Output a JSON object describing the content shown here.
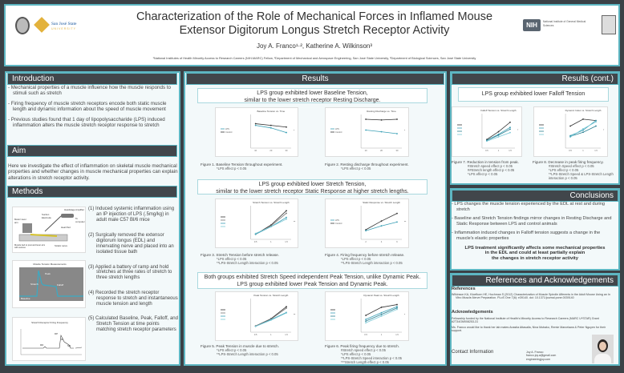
{
  "header": {
    "title_line1": "Characterization of the Role of Mechanical Forces in Inflamed Mouse",
    "title_line2": "Extensor Digitorum Longus Stretch Receptor Activity",
    "authors": "Joy A. Franco¹·², Katherine A. Wilkinson³",
    "affiliations": "¹National Institutes of Health Minority Access to Research Careers (NIH-MARC) Fellow, ²Department of Mechanical and Aerospace Engineering, San José State University, ³Department of Biological Sciences, San José State University",
    "logo_left_text": "San José State",
    "logo_left_sub": "UNIVERSITY",
    "logo_nih": "NIH",
    "logo_nih_text": "National Institute of General Medical Sciences"
  },
  "intro": {
    "title": "Introduction",
    "bullets": [
      "- Mechanical properties of a muscle influence how the muscle responds to stimuli such as stretch",
      "- Firing frequency of muscle stretch receptors encode both static muscle length and dynamic information about the speed of muscle movement",
      "- Previous studies found that 1 day of lipopolysaccharide (LPS) induced inflammation alters the muscle stretch receptor response to stretch"
    ]
  },
  "aim": {
    "title": "Aim",
    "text": "Here we investigate the effect of inflammation on skeletal muscle mechanical properties and whether changes in muscle mechanical properties can explain alterations in stretch receptor activity."
  },
  "methods": {
    "title": "Methods",
    "steps": [
      "(1) Induced systemic inflammation using an IP injection of LPS (.5mg/kg) in adult male C57 Bl/6 mice",
      "(2) Surgically removed the extensor digitorum longus (EDL) and innervating nerve and placed into an isolated tissue bath",
      "(3) Applied a battery of ramp and hold stretches at three rates of stretch to three stretch lengths",
      "(4) Recorded the stretch receptor response to stretch and instantaneous muscle tension and length",
      "(5) Calculated Baseline, Peak, Falloff, and Stretch Tension at time points matching stretch receptor parameters"
    ],
    "img1_labels": [
      "Headstage Amplifier",
      "To computer",
      "Suction Electrode",
      "Motor/ lever arm",
      "Heat Pad",
      "Muscle tied to post and lever arm with sutures",
      "Sciatic nerve"
    ],
    "img2_title": "Muscle Tension Measurements",
    "img2_labels": [
      "Peak",
      "Falloff",
      "Stretch",
      "Baseline"
    ],
    "img3_title": "Stretch Receptor Firing Frequency",
    "img3_labels": [
      "RD",
      "DP",
      "DI",
      "SR"
    ]
  },
  "results": {
    "title": "Results",
    "box1": [
      "LPS group exhibited lower Baseline Tension,",
      "similar to the lower stretch receptor Resting Discharge."
    ],
    "box2": [
      "LPS group exhibited lower Stretch Tension,",
      "similar to the lower stretch receptor Static Response at higher stretch lengths."
    ],
    "box3": [
      "Both groups exhibited Stretch Speed independent Peak Tension, unlike Dynamic Peak.",
      "LPS group exhibited lower Peak Tension and Dynamic Peak."
    ]
  },
  "results_cont": {
    "title": "Results (cont.)",
    "box1": "LPS group exhibited lower Falloff Tension"
  },
  "figures": [
    {
      "title": "Baseline Tension vs. Time",
      "caption": "Figure 1.  Baseline Tension throughout experiment.",
      "notes": [
        "*LPS effect p < 0.05"
      ],
      "ylim": [
        0,
        8
      ],
      "legend": [
        "LPS",
        "Control"
      ],
      "series": [
        {
          "name": "Control",
          "color": "#333333",
          "values": [
            5.8,
            5.4,
            5.0
          ]
        },
        {
          "name": "LPS",
          "color": "#3a9fb5",
          "values": [
            5.4,
            4.8,
            3.7
          ]
        }
      ],
      "xticks": [
        "10",
        "20",
        "30"
      ],
      "sig": "*"
    },
    {
      "title": "Resting Discharge vs. Time",
      "caption": "Figure 2.  Resting discharge throughout experiment.",
      "notes": [
        "*LPS effect p < 0.05"
      ],
      "ylim": [
        0,
        14
      ],
      "legend": [
        "LPS",
        "Control"
      ],
      "series": [
        {
          "name": "Control",
          "color": "#333333",
          "values": [
            12,
            11.7,
            12
          ]
        },
        {
          "name": "LPS",
          "color": "#3a9fb5",
          "values": [
            7.5,
            6.8,
            6
          ]
        }
      ],
      "xticks": [
        "10",
        "20",
        "30"
      ],
      "sig": "*"
    },
    {
      "title": "Stretch Tension vs. Stretch Length",
      "caption": "Figure 3.  Stretch Tension before stretch release.",
      "notes": [
        "*LPS effect p < 0.05",
        "**LPS-Stretch Length interaction p < 0.05"
      ],
      "ylim": [
        0,
        40
      ],
      "series": [
        {
          "color": "#333333",
          "values": [
            6,
            17,
            34
          ]
        },
        {
          "color": "#777777",
          "values": [
            6,
            16,
            31
          ]
        },
        {
          "color": "#3a9fb5",
          "values": [
            6,
            15,
            26
          ]
        },
        {
          "color": "#7cc8d6",
          "values": [
            7,
            15,
            24
          ]
        }
      ],
      "xticks": [
        "0.5",
        "1",
        "1.5"
      ],
      "sig": "**"
    },
    {
      "title": "Static Response vs. Stretch Length",
      "caption": "Figure 4.  Firing frequency before stretch release.",
      "notes": [
        "*LPS effect p < 0.05",
        "**LPS-Stretch Length interaction p < 0.05"
      ],
      "ylim": [
        0,
        35
      ],
      "legend": [
        "LPS",
        "Control"
      ],
      "series": [
        {
          "name": "Control",
          "color": "#333333",
          "values": [
            10,
            19,
            27
          ]
        },
        {
          "name": "LPS",
          "color": "#3a9fb5",
          "values": [
            9,
            14,
            18
          ]
        }
      ],
      "xticks": [
        "2",
        "4",
        "6"
      ],
      "sig": "**"
    },
    {
      "title": "Peak Tension vs. Stretch Length",
      "caption": "Figure 5.  Peak Tension in muscle due to stretch.",
      "notes": [
        "*LPS effect p < 0.05",
        "**LPS-Stretch Length interaction p < 0.05"
      ],
      "ylim": [
        0,
        70
      ],
      "series": [
        {
          "color": "#333333",
          "values": [
            13,
            28,
            53
          ]
        },
        {
          "color": "#777777",
          "values": [
            13,
            27,
            50
          ]
        },
        {
          "color": "#3a9fb5",
          "values": [
            12,
            26,
            41
          ]
        },
        {
          "color": "#7cc8d6",
          "values": [
            12,
            25,
            40
          ]
        }
      ],
      "xticks": [
        "0.5",
        "1",
        "1.5"
      ],
      "sig": "**"
    },
    {
      "title": "Dynamic Peak vs. Stretch Length",
      "caption": "Figure 6.  Peak firing frequency due to stretch.",
      "notes": [
        "#Stretch speed effect p < 0.05",
        "*LPS effect p < 0.05",
        "**LPS-Stretch Speed interaction p < 0.05",
        "***Stretch Length effect p < 0.05"
      ],
      "ylim": [
        0,
        100
      ],
      "series": [
        {
          "color": "#333333",
          "values": [
            50,
            74,
            82
          ]
        },
        {
          "color": "#3a9fb5",
          "values": [
            38,
            58,
            76
          ]
        },
        {
          "color": "#2a7f92",
          "values": [
            33,
            53,
            72
          ]
        },
        {
          "color": "#7cc8d6",
          "values": [
            28,
            48,
            68
          ]
        }
      ],
      "xticks": [
        "0.5",
        "1",
        "1.5"
      ],
      "sig": "*"
    },
    {
      "title": "Falloff Tension vs. Stretch Length",
      "caption": "Figure 7.  Reduction in tension from peak.",
      "notes": [
        "#Stretch speed effect p < 0.05",
        "##Stretch length effect p < 0.05",
        "*LPS effect p < 0.05"
      ],
      "ylim": [
        0,
        20
      ],
      "series": [
        {
          "color": "#333333",
          "values": [
            5,
            9.5,
            15
          ]
        },
        {
          "color": "#3a9fb5",
          "values": [
            4.5,
            8,
            12
          ]
        },
        {
          "color": "#2a7f92",
          "values": [
            4.5,
            7.5,
            11
          ]
        },
        {
          "color": "#7cc8d6",
          "values": [
            4,
            6.5,
            9
          ]
        }
      ],
      "xticks": [
        "0.5",
        "1",
        "1.5"
      ],
      "sig": "*"
    },
    {
      "title": "Dynamic Index vs. Stretch Length",
      "caption": "Figure 8.  Decrease in peak firing frequency.",
      "notes": [
        "#Stretch Speed effect p < 0.05",
        "*LPS effect p < 0.05",
        "**LPS-Stretch Speed & LPS-Stretch Length interaction p < 0.05"
      ],
      "ylim": [
        0,
        50
      ],
      "series": [
        {
          "color": "#333333",
          "values": [
            32,
            42,
            40
          ]
        },
        {
          "color": "#3a9fb5",
          "values": [
            18,
            26,
            40
          ]
        },
        {
          "color": "#2a7f92",
          "values": [
            17,
            23,
            32
          ]
        },
        {
          "color": "#7cc8d6",
          "values": [
            16,
            28,
            38
          ]
        }
      ],
      "xticks": [
        "0.5",
        "1",
        "1.5"
      ],
      "sig": "*"
    }
  ],
  "conclusions": {
    "title": "Conclusions",
    "bullets": [
      "- LPS changes the muscle tension experienced by the EDL at rest and during stretch",
      "- Baseline and Stretch Tension findings mirror changes in Resting Discharge and Static Response between LPS and control animals",
      "- Inflammation induced changes in Falloff tension suggests a change in the muscle's elastic properties"
    ],
    "summary": [
      "LPS treatment significantly affects some mechanical properties",
      "in the EDL and could at least partially explain",
      "the changes in stretch receptor activity"
    ]
  },
  "references": {
    "title": "References and Acknowledgements",
    "refs_heading": "References",
    "ref": "Wilkinson KA, Kloefkorn HE, Hochman S (2012) Characterization of Muscle Spindle Afferents in the Adult Mouse Using an In Vitro Muscle-Nerve Preparation. PLoS One 7(6): e39140. doi: 10.1371/journal.pone.0039140",
    "ack_heading": "Acknowledgements",
    "ack1": "Fellowship funded by the National Institute of Health's Minority Access to Research Careers (MARC U*STAR) Grant #2T34GM008253-31",
    "ack2": "Ms. Franco would like to thank her lab mates Anastia Attasalla, Nina Mubako, Remie Marcelawa & Peter Nguyen for their support.",
    "contact_heading": "Contact Information",
    "contact": [
      "Joy A. Franco",
      "franco.joy.a@gmail.com",
      "engineeringjoy.com"
    ]
  }
}
